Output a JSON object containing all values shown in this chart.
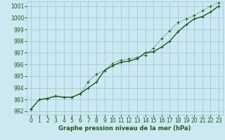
{
  "xlabel": "Graphe pression niveau de la mer (hPa)",
  "xlim": [
    -0.5,
    23.5
  ],
  "ylim": [
    991.7,
    1001.4
  ],
  "yticks": [
    992,
    993,
    994,
    995,
    996,
    997,
    998,
    999,
    1000,
    1001
  ],
  "xticks": [
    0,
    1,
    2,
    3,
    4,
    5,
    6,
    7,
    8,
    9,
    10,
    11,
    12,
    13,
    14,
    15,
    16,
    17,
    18,
    19,
    20,
    21,
    22,
    23
  ],
  "bg_color": "#cce8f0",
  "grid_color": "#9dc4d0",
  "line_color": "#1a5c1a",
  "line_solid": [
    992.2,
    993.0,
    993.1,
    993.3,
    993.2,
    993.2,
    993.5,
    994.0,
    994.5,
    995.5,
    995.9,
    996.2,
    996.3,
    996.5,
    997.0,
    997.1,
    997.5,
    998.0,
    998.8,
    999.4,
    999.9,
    1000.1,
    1000.5,
    1001.0
  ],
  "line_dotted": [
    992.2,
    993.0,
    993.1,
    993.3,
    993.2,
    993.2,
    993.5,
    994.5,
    995.2,
    995.5,
    996.1,
    996.4,
    996.5,
    996.6,
    996.8,
    997.4,
    998.2,
    998.9,
    999.6,
    999.9,
    1000.2,
    1000.6,
    1001.0,
    1001.3
  ]
}
